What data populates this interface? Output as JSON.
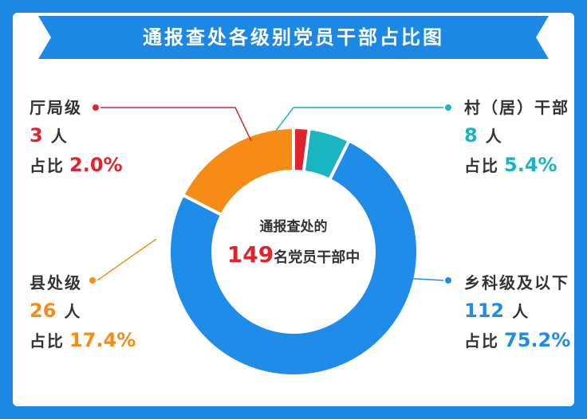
{
  "title": "通报查处各级别党员干部占比图",
  "center": {
    "line1": "通报查处的",
    "total": "149",
    "line2": "名党员干部中"
  },
  "colors": {
    "frame": "#1d87e4",
    "title_banner": "#1d87e4"
  },
  "chart_data": {
    "type": "pie",
    "style": "donut",
    "total": 149,
    "unit": "人",
    "categories": [
      "厅局级",
      "村(居)干部",
      "乡科级及以下",
      "县处级"
    ],
    "values": [
      3,
      8,
      112,
      26
    ],
    "percents": [
      "2.0%",
      "5.4%",
      "75.2%",
      "17.4%"
    ],
    "colors": [
      "#e0242f",
      "#19b6c2",
      "#1e8ce8",
      "#f68b15"
    ],
    "slices": [
      {
        "name": "厅局级",
        "count": "3",
        "unit": "人",
        "percent_prefix": "占比",
        "percent": "2.0%",
        "color": "#e0242f"
      },
      {
        "name": "村（居）干部",
        "count": "8",
        "unit": "人",
        "percent_prefix": "占比",
        "percent": "5.4%",
        "color": "#19b6c2"
      },
      {
        "name": "乡科级及以下",
        "count": "112",
        "unit": "人",
        "percent_prefix": "占比",
        "percent": "75.2%",
        "color": "#1e8ce8"
      },
      {
        "name": "县处级",
        "count": "26",
        "unit": "人",
        "percent_prefix": "占比",
        "percent": "17.4%",
        "color": "#f68b15"
      }
    ]
  }
}
